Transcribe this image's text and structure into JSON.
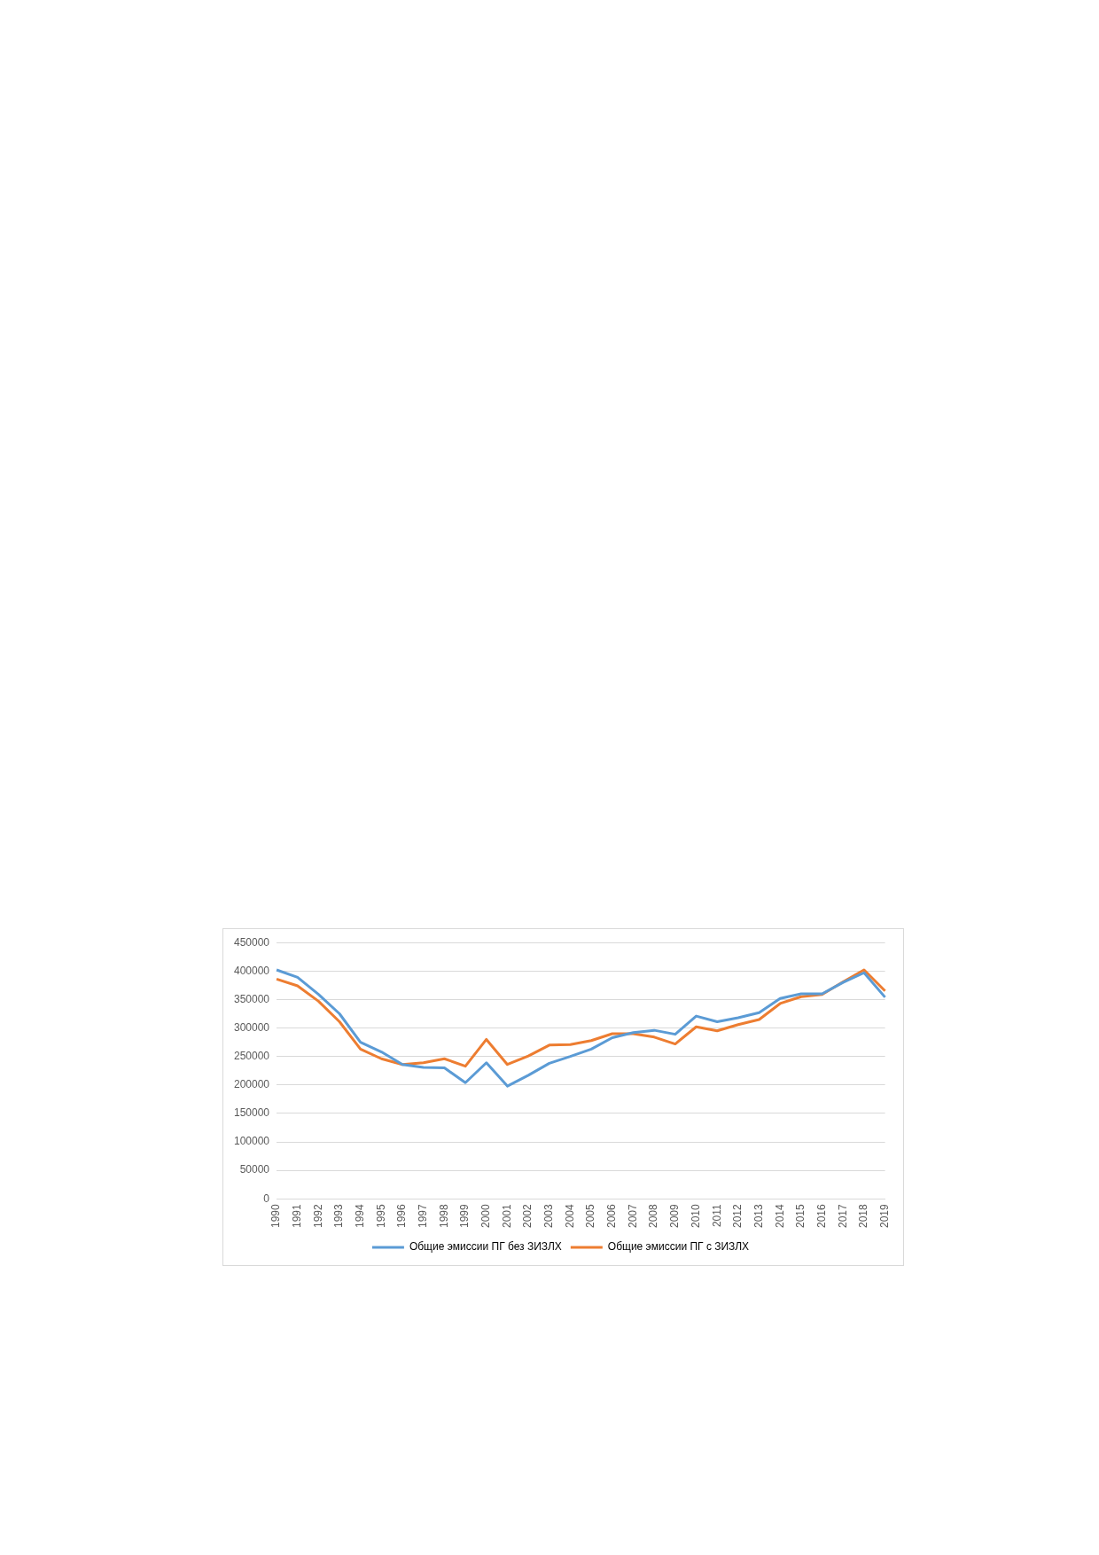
{
  "chart_data": {
    "type": "line",
    "categories": [
      "1990",
      "1991",
      "1992",
      "1993",
      "1994",
      "1995",
      "1996",
      "1997",
      "1998",
      "1999",
      "2000",
      "2001",
      "2002",
      "2003",
      "2004",
      "2005",
      "2006",
      "2007",
      "2008",
      "2009",
      "2010",
      "2011",
      "2012",
      "2013",
      "2014",
      "2015",
      "2016",
      "2017",
      "2018",
      "2019"
    ],
    "series": [
      {
        "name": "Общие эмиссии ПГ без ЗИЗЛХ",
        "color": "#5b9bd5",
        "values": [
          402000,
          389000,
          359000,
          325000,
          275000,
          258000,
          236000,
          231000,
          230000,
          204000,
          239000,
          198000,
          217000,
          238000,
          250000,
          263000,
          283000,
          292000,
          296000,
          289000,
          321000,
          311000,
          318000,
          327000,
          352000,
          360000,
          360000,
          380000,
          397000,
          354000
        ]
      },
      {
        "name": "Общие эмиссии ПГ с ЗИЗЛХ",
        "color": "#ed7d31",
        "values": [
          386000,
          374000,
          347000,
          311000,
          263000,
          246000,
          236000,
          239000,
          246000,
          233000,
          280000,
          236000,
          251000,
          270000,
          271000,
          278000,
          290000,
          290000,
          284000,
          272000,
          302000,
          295000,
          306000,
          315000,
          343000,
          355000,
          359000,
          381000,
          402000,
          365000
        ]
      }
    ],
    "ylim": [
      0,
      450000
    ],
    "yticks": [
      0,
      50000,
      100000,
      150000,
      200000,
      250000,
      300000,
      350000,
      400000,
      450000
    ],
    "grid": "y",
    "legend": "bottom",
    "marker": "none",
    "line_style": "solid"
  }
}
